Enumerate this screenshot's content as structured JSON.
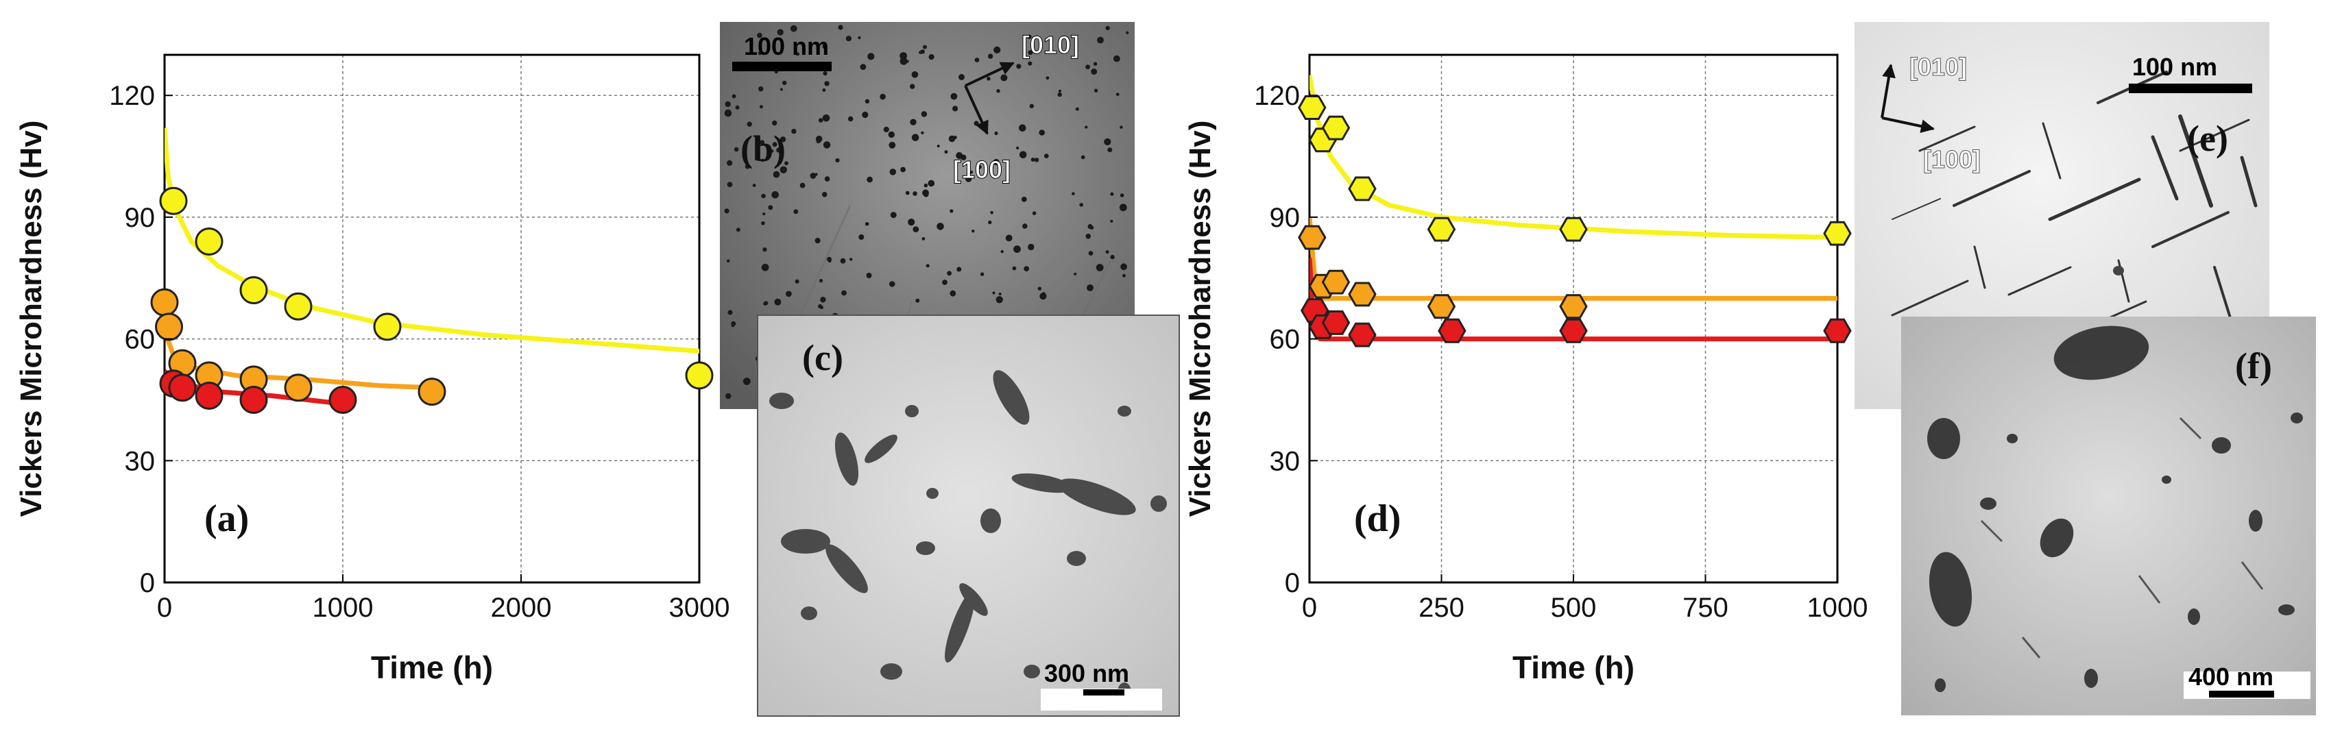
{
  "figure": {
    "panel_a": {
      "panel_label": "(a)",
      "ylabel": "Vickers Microhardness (Hv)",
      "xlabel": "Time (h)"
    },
    "panel_b": {
      "panel_label": "(b)",
      "scale_bar": "100 nm",
      "direction_1": "[010]",
      "direction_2": "[100]"
    },
    "panel_c": {
      "panel_label": "(c)",
      "scale_bar": "300 nm"
    },
    "panel_d": {
      "panel_label": "(d)",
      "ylabel": "Vickers Microhardness (Hv)",
      "xlabel": "Time (h)"
    },
    "panel_e": {
      "panel_label": "(e)",
      "scale_bar": "100 nm",
      "direction_1": "[010]",
      "direction_2": "[100]"
    },
    "panel_f": {
      "panel_label": "(f)",
      "scale_bar": "400 nm"
    }
  },
  "colors": {
    "yellow": "#f7f21a",
    "orange": "#f7a21b",
    "red": "#e41a1c",
    "marker_edge": "#222222"
  },
  "chart_data": [
    {
      "type": "scatter",
      "panel": "a",
      "xlabel": "Time (h)",
      "ylabel": "Vickers Microhardness (Hv)",
      "xlim": [
        0,
        3000
      ],
      "ylim": [
        0,
        130
      ],
      "xticks": [
        0,
        1000,
        2000,
        3000
      ],
      "yticks": [
        0,
        30,
        60,
        90,
        120
      ],
      "grid": true,
      "marker": "circle",
      "series": [
        {
          "color": "yellow",
          "points": [
            [
              50,
              94
            ],
            [
              250,
              84
            ],
            [
              500,
              72
            ],
            [
              750,
              68
            ],
            [
              1250,
              63
            ],
            [
              3000,
              51
            ]
          ],
          "fit": [
            [
              0,
              112
            ],
            [
              20,
              100
            ],
            [
              60,
              92
            ],
            [
              150,
              84
            ],
            [
              300,
              78
            ],
            [
              500,
              73
            ],
            [
              800,
              68
            ],
            [
              1200,
              64
            ],
            [
              1800,
              61
            ],
            [
              2400,
              59
            ],
            [
              3000,
              57
            ]
          ]
        },
        {
          "color": "orange",
          "points": [
            [
              0,
              69
            ],
            [
              25,
              63
            ],
            [
              100,
              54
            ],
            [
              250,
              51
            ],
            [
              500,
              50
            ],
            [
              750,
              48
            ],
            [
              1500,
              47
            ]
          ],
          "fit": [
            [
              0,
              62
            ],
            [
              50,
              56
            ],
            [
              150,
              53
            ],
            [
              400,
              51
            ],
            [
              800,
              50
            ],
            [
              1200,
              48.5
            ],
            [
              1500,
              48
            ]
          ]
        },
        {
          "color": "red",
          "points": [
            [
              50,
              49
            ],
            [
              100,
              48
            ],
            [
              250,
              46
            ],
            [
              500,
              45
            ],
            [
              1000,
              45
            ]
          ],
          "fit": [
            [
              0,
              52
            ],
            [
              100,
              49
            ],
            [
              300,
              47
            ],
            [
              600,
              46
            ],
            [
              1000,
              44
            ]
          ]
        }
      ]
    },
    {
      "type": "scatter",
      "panel": "d",
      "xlabel": "Time (h)",
      "ylabel": "Vickers Microhardness (Hv)",
      "xlim": [
        0,
        1000
      ],
      "ylim": [
        0,
        130
      ],
      "xticks": [
        0,
        250,
        500,
        750,
        1000
      ],
      "yticks": [
        0,
        30,
        60,
        90,
        120
      ],
      "grid": true,
      "marker": "hexagon",
      "series": [
        {
          "color": "yellow",
          "points": [
            [
              5,
              117
            ],
            [
              25,
              109
            ],
            [
              50,
              112
            ],
            [
              100,
              97
            ],
            [
              250,
              87
            ],
            [
              500,
              87
            ],
            [
              1000,
              86
            ]
          ],
          "fit": [
            [
              0,
              125
            ],
            [
              15,
              114
            ],
            [
              40,
              105
            ],
            [
              80,
              98
            ],
            [
              150,
              93
            ],
            [
              250,
              90
            ],
            [
              400,
              88
            ],
            [
              600,
              86.5
            ],
            [
              800,
              85.5
            ],
            [
              1000,
              85
            ]
          ]
        },
        {
          "color": "orange",
          "points": [
            [
              5,
              85
            ],
            [
              25,
              73
            ],
            [
              50,
              74
            ],
            [
              100,
              71
            ],
            [
              250,
              68
            ],
            [
              500,
              68
            ]
          ],
          "fit": [
            [
              0,
              90
            ],
            [
              10,
              75
            ],
            [
              25,
              70
            ],
            [
              1000,
              70
            ]
          ]
        },
        {
          "color": "red",
          "points": [
            [
              10,
              67
            ],
            [
              25,
              63
            ],
            [
              50,
              64
            ],
            [
              100,
              61
            ],
            [
              270,
              62
            ],
            [
              500,
              62
            ],
            [
              1000,
              62
            ]
          ],
          "fit": [
            [
              0,
              80
            ],
            [
              8,
              64
            ],
            [
              20,
              60
            ],
            [
              1000,
              60
            ]
          ]
        }
      ]
    }
  ]
}
